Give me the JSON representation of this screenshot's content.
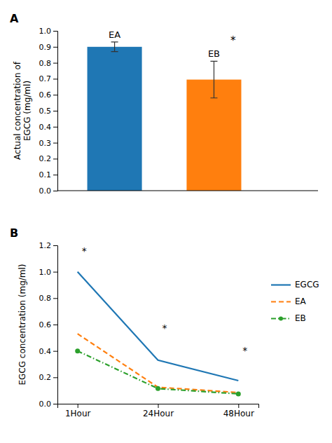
{
  "chart_data": [
    {
      "type": "bar",
      "title": "A",
      "categories": [
        "EA",
        "EB"
      ],
      "values": [
        0.9,
        0.695
      ],
      "errors": [
        0.03,
        0.115
      ],
      "y_label": "Actual concentration of\nEGCG (mg/ml)",
      "ylim": [
        0,
        1.0
      ],
      "yticks": [
        {
          "value": 0,
          "label": "0.0"
        },
        0.1,
        0.2,
        0.3,
        0.4,
        0.5,
        0.6,
        0.7,
        0.8,
        0.9,
        {
          "value": 1,
          "label": "1.0"
        }
      ],
      "annotations": [
        {
          "text": "*",
          "category": "EB"
        }
      ]
    },
    {
      "type": "line",
      "title": "B",
      "categories": [
        "1Hour",
        "24Hour",
        "48Hour"
      ],
      "series": [
        {
          "name": "EGCG",
          "values": [
            1.0,
            0.33,
            0.175
          ],
          "line_style": "solid"
        },
        {
          "name": "EA",
          "values": [
            0.53,
            0.125,
            0.085
          ],
          "line_style": "dashed"
        },
        {
          "name": "EB",
          "values": [
            0.4,
            0.115,
            0.075
          ],
          "line_style": "dashdot",
          "marker": "circle"
        }
      ],
      "y_label": "EGCG concentration (mg/ml)",
      "ylim": [
        0,
        1.2
      ],
      "yticks": [
        {
          "value": 0,
          "label": "0.0"
        },
        0.2,
        0.4,
        0.6,
        0.8,
        {
          "value": 1.0,
          "label": "1.0"
        },
        1.2
      ],
      "legend": "right",
      "annotations": [
        {
          "text": "*",
          "category": "1Hour",
          "y": 1.15
        },
        {
          "text": "*",
          "category": "24Hour",
          "y": 0.57
        },
        {
          "text": "*",
          "category": "48Hour",
          "y": 0.4
        }
      ]
    }
  ]
}
